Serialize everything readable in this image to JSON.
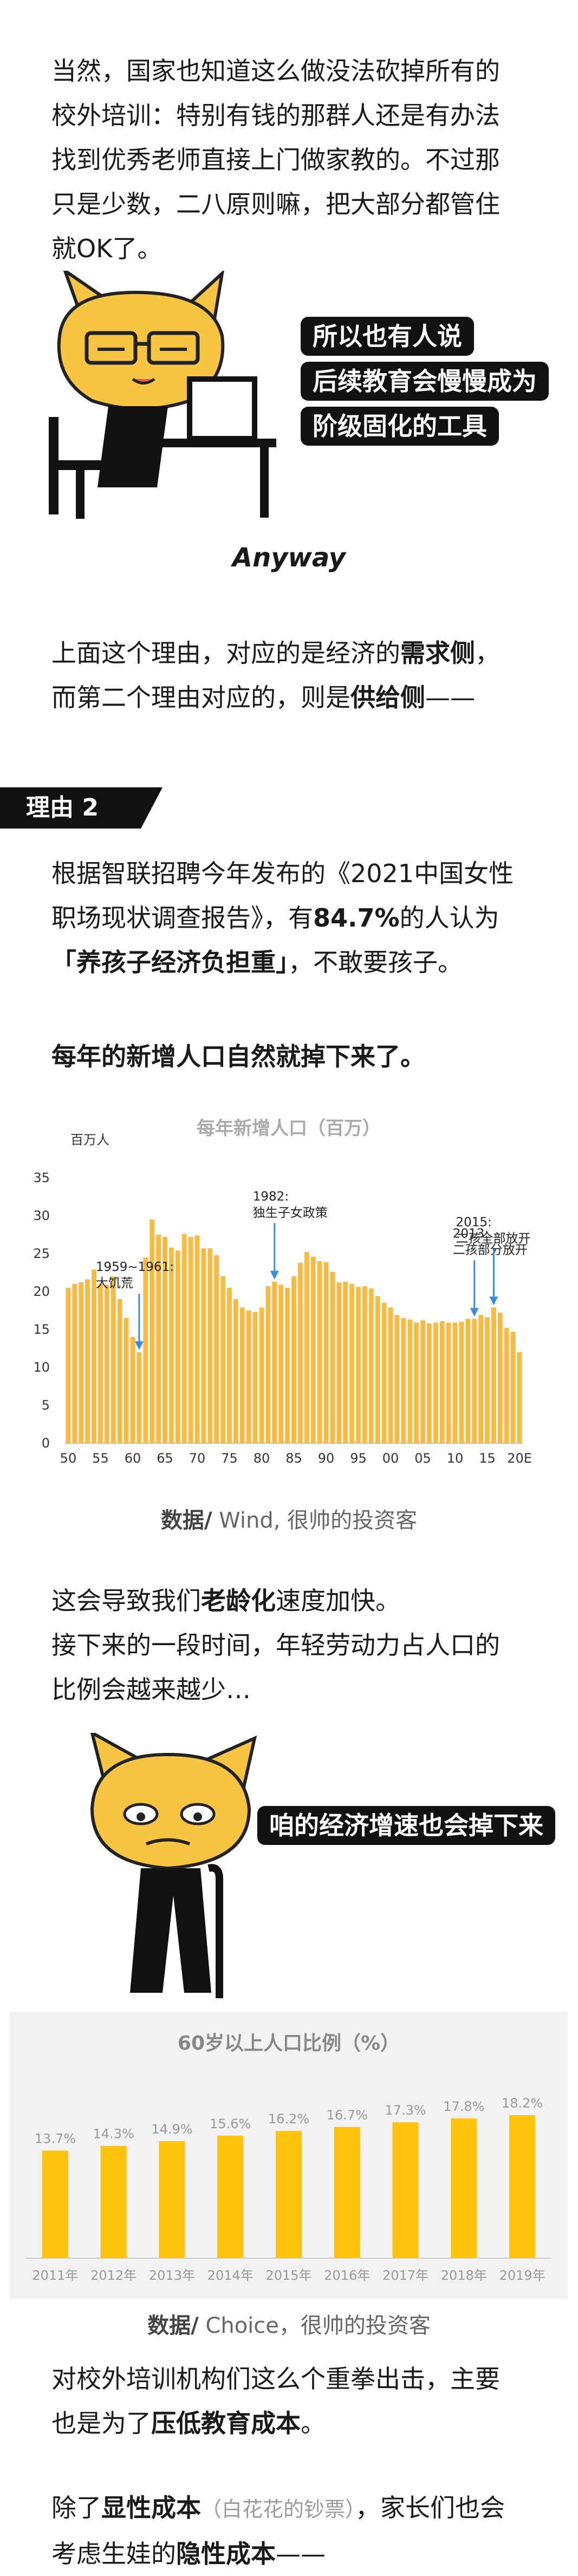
{
  "p1": [
    "当然，国家也知道这么做没法砍掉所有的",
    "校外培训：特别有钱的那群人还是有办法",
    "找到优秀老师直接上门做家教的。不过那",
    "只是少数，二八原则嘛，把大部分都管住",
    "就OK了。"
  ],
  "bubble1": [
    "所以也有人说",
    "后续教育会慢慢成为",
    "阶级固化的工具"
  ],
  "anyway": "Anyway",
  "p2": {
    "l1_pre": "上面这个理由，对应的是经济的",
    "l1_bold": "需求侧",
    "l1_post": "，",
    "l2_pre": "而第二个理由对应的，则是",
    "l2_bold": "供给侧",
    "l2_post": "——"
  },
  "section_label": "理由 2",
  "p3": {
    "l1": "根据智联招聘今年发布的《2021中国女性",
    "l2_pre": "职场现状调查报告》，有",
    "l2_bold": "84.7%",
    "l2_post": "的人认为",
    "l3_bold": "「养孩子经济负担重」",
    "l3_post": "，不敢要孩子。"
  },
  "p4_bold": "每年的新增人口自然就掉下来了。",
  "chart1": {
    "chart_data": {
      "type": "bar",
      "title": "每年新增人口（百万）",
      "ylabel": "百万人",
      "ylim": [
        0,
        35
      ],
      "yticks": [
        0,
        5,
        10,
        15,
        20,
        25,
        30,
        35
      ],
      "xtick_labels": [
        "50",
        "55",
        "60",
        "65",
        "70",
        "75",
        "80",
        "85",
        "90",
        "95",
        "00",
        "05",
        "10",
        "15",
        "20E"
      ],
      "years_start": 1950,
      "values": [
        20.5,
        21.0,
        21.2,
        21.6,
        22.9,
        21.0,
        20.9,
        22.0,
        19.0,
        16.5,
        14.0,
        12.0,
        24.5,
        29.5,
        27.5,
        27.2,
        25.8,
        25.4,
        27.6,
        27.2,
        27.4,
        25.7,
        25.7,
        24.8,
        22.0,
        20.5,
        19.0,
        17.9,
        17.5,
        17.3,
        17.9,
        20.7,
        21.3,
        20.9,
        20.5,
        22.0,
        23.8,
        25.2,
        24.6,
        24.0,
        23.9,
        22.6,
        21.2,
        21.3,
        21.0,
        20.6,
        20.7,
        20.4,
        19.4,
        18.5,
        17.9,
        16.9,
        16.5,
        16.3,
        15.9,
        16.2,
        15.8,
        15.9,
        16.1,
        15.9,
        15.9,
        16.0,
        16.4,
        16.4,
        16.9,
        16.6,
        17.9,
        17.2,
        15.2,
        14.7,
        12.0
      ],
      "bar_color": "#f5bb45",
      "annotations": [
        {
          "lines": [
            "1959~1961:",
            "大饥荒"
          ],
          "x": 1961
        },
        {
          "lines": [
            "1982:",
            "独生子女政策"
          ],
          "x": 1982
        },
        {
          "lines": [
            "2013:",
            "二孩部分放开"
          ],
          "x": 2013
        },
        {
          "lines": [
            "2015:",
            "二孩全部放开"
          ],
          "x": 2016
        }
      ]
    },
    "caption_bold": "数据/",
    "caption": " Wind, 很帅的投资客"
  },
  "p5": {
    "l1_pre": "这会导致我们",
    "l1_bold": "老龄化",
    "l1_post": "速度加快。",
    "l2": "接下来的一段时间，年轻劳动力占人口的",
    "l3": "比例会越来越少…"
  },
  "bubble2": "咱的经济增速也会掉下来",
  "chart2": {
    "chart_data": {
      "type": "bar",
      "title": "60岁以上人口比例（%）",
      "categories": [
        "2011年",
        "2012年",
        "2013年",
        "2014年",
        "2015年",
        "2016年",
        "2017年",
        "2018年",
        "2019年"
      ],
      "values": [
        13.7,
        14.3,
        14.9,
        15.6,
        16.2,
        16.7,
        17.3,
        17.8,
        18.2
      ],
      "value_labels": [
        "13.7%",
        "14.3%",
        "14.9%",
        "15.6%",
        "16.2%",
        "16.7%",
        "17.3%",
        "17.8%",
        "18.2%"
      ],
      "bar_color": "#ffc20e"
    },
    "caption_bold": "数据/",
    "caption": " Choice，很帅的投资客"
  },
  "p6": {
    "l1": "对校外培训机构们这么个重拳出击，主要",
    "l2_pre": "也是为了",
    "l2_bold": "压低教育成本",
    "l2_post": "。"
  },
  "p7": {
    "l1_pre": "除了",
    "l1_bold": "显性成本",
    "l1_muted": "（白花花的钞票）",
    "l1_post": "，家长们也会",
    "l2_pre": "考虑生娃的",
    "l2_bold": "隐性成本",
    "l2_post": "——"
  }
}
